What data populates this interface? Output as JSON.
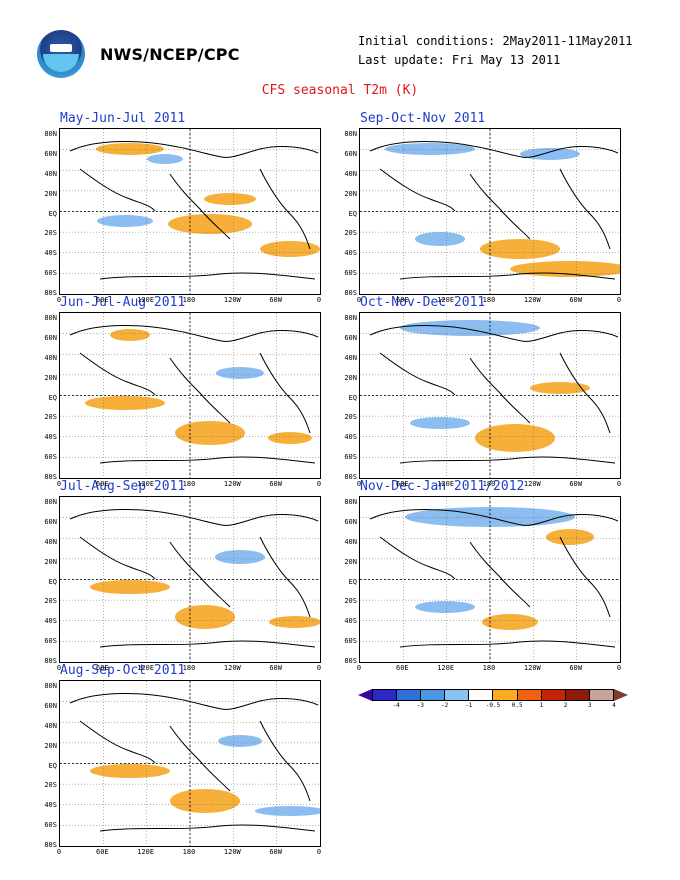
{
  "header": {
    "agency": "NWS/NCEP/CPC",
    "initial_conditions": "Initial conditions: 2May2011-11May2011",
    "last_update": "Last update: Fri May 13 2011",
    "title": "CFS seasonal T2m (K)"
  },
  "axes": {
    "lat_labels": [
      "80N",
      "60N",
      "40N",
      "20N",
      "EQ",
      "20S",
      "40S",
      "60S",
      "80S"
    ],
    "lon_labels": [
      "0",
      "60E",
      "120E",
      "180",
      "120W",
      "60W",
      "0"
    ]
  },
  "panels": [
    {
      "title": "May-Jun-Jul 2011"
    },
    {
      "title": "Sep-Oct-Nov 2011"
    },
    {
      "title": "Jun-Jul-Aug 2011"
    },
    {
      "title": "Oct-Nov-Dec 2011"
    },
    {
      "title": "Jul-Aug-Sep 2011"
    },
    {
      "title": "Nov-Dec-Jan 2011/2012"
    },
    {
      "title": "Aug-Sep-Oct 2011"
    }
  ],
  "colorbar": {
    "labels": [
      "-4",
      "-3",
      "-2",
      "-1",
      "-0.5",
      "0.5",
      "1",
      "2",
      "3",
      "4"
    ],
    "colors": [
      "#37099a",
      "#2c28c8",
      "#2f6fd8",
      "#4b95e2",
      "#88c2f0",
      "#ffffff",
      "#ffaa22",
      "#f06010",
      "#c42404",
      "#8e1a0a",
      "#c9a39a",
      "#7a3e2a"
    ],
    "accent_warm": "#f5a623",
    "accent_cool": "#7fb6ef"
  }
}
